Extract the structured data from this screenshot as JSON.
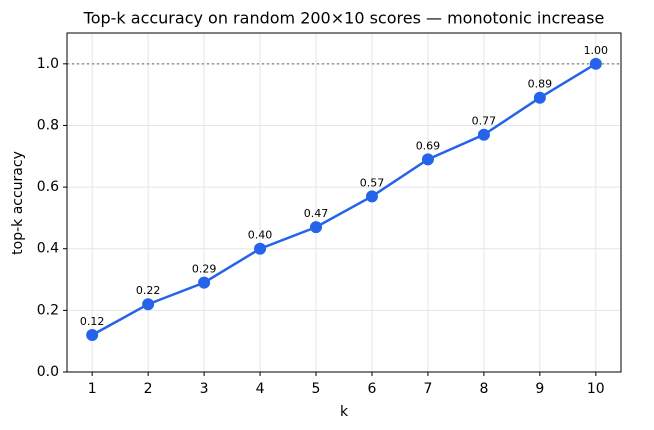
{
  "chart_data": {
    "type": "line",
    "title": "Top-k accuracy on random 200×10 scores — monotonic increase",
    "x_label": "k",
    "y_label": "top-k accuracy",
    "x": [
      1,
      2,
      3,
      4,
      5,
      6,
      7,
      8,
      9,
      10
    ],
    "series": [
      {
        "name": "top-k accuracy",
        "color": "#2563eb",
        "values": [
          0.12,
          0.22,
          0.29,
          0.4,
          0.47,
          0.57,
          0.69,
          0.77,
          0.89,
          1.0
        ],
        "value_labels": [
          "0.12",
          "0.22",
          "0.29",
          "0.40",
          "0.47",
          "0.57",
          "0.69",
          "0.77",
          "0.89",
          "1.00"
        ]
      }
    ],
    "xlim": [
      0.55,
      10.45
    ],
    "ylim": [
      0,
      1.1
    ],
    "xticks": [
      1,
      2,
      3,
      4,
      5,
      6,
      7,
      8,
      9,
      10
    ],
    "yticks": [
      {
        "value": 0,
        "label": "0.0"
      },
      {
        "value": 0.2,
        "label": "0.2"
      },
      {
        "value": 0.4,
        "label": "0.4"
      },
      {
        "value": 0.6,
        "label": "0.6"
      },
      {
        "value": 0.8,
        "label": "0.8"
      },
      {
        "value": 1.0,
        "label": "1.0"
      }
    ],
    "reference_line": {
      "y": 1.0,
      "color": "#999999"
    },
    "grid": true
  }
}
